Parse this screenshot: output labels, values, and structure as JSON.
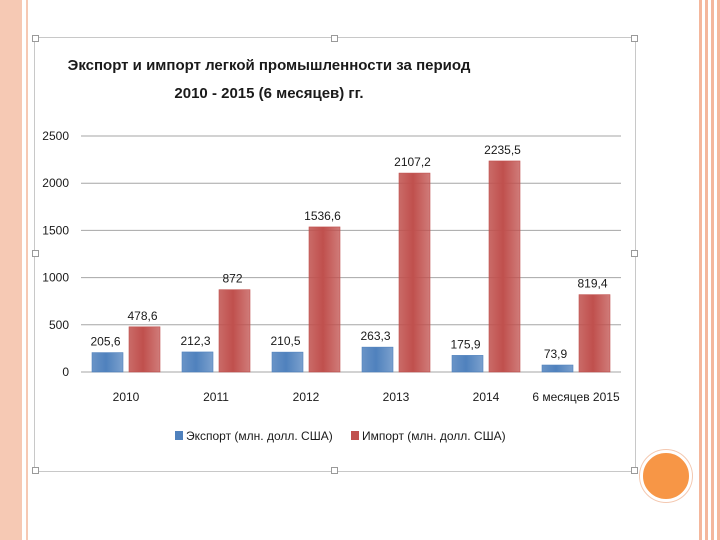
{
  "colors": {
    "export": "#4f81bd",
    "import": "#c0504d",
    "grid": "#a6a6a6",
    "accent": "#f79646",
    "border_decor": "#f6c9b4"
  },
  "chart_data": {
    "type": "bar",
    "title": [
      "Экспорт и импорт легкой промышленности за период",
      "2010 - 2015 (6 месяцев) гг."
    ],
    "categories": [
      "2010",
      "2011",
      "2012",
      "2013",
      "2014",
      "6 месяцев 2015"
    ],
    "series": [
      {
        "name": "Экспорт (млн. долл. США)",
        "values": [
          205.6,
          212.3,
          210.5,
          263.3,
          175.9,
          73.9
        ],
        "labels": [
          "205,6",
          "212,3",
          "210,5",
          "263,3",
          "175,9",
          "73,9"
        ]
      },
      {
        "name": "Импорт (млн. долл. США)",
        "values": [
          478.6,
          872,
          1536.6,
          2107.2,
          2235.5,
          819.4
        ],
        "labels": [
          "478,6",
          "872",
          "1536,6",
          "2107,2",
          "2235,5",
          "819,4"
        ]
      }
    ],
    "yticks": [
      "0",
      "500",
      "1000",
      "1500",
      "2000",
      "2500"
    ],
    "ylim": [
      0,
      2500
    ],
    "grid": true,
    "legend": "bottom",
    "xlabel": "",
    "ylabel": ""
  }
}
